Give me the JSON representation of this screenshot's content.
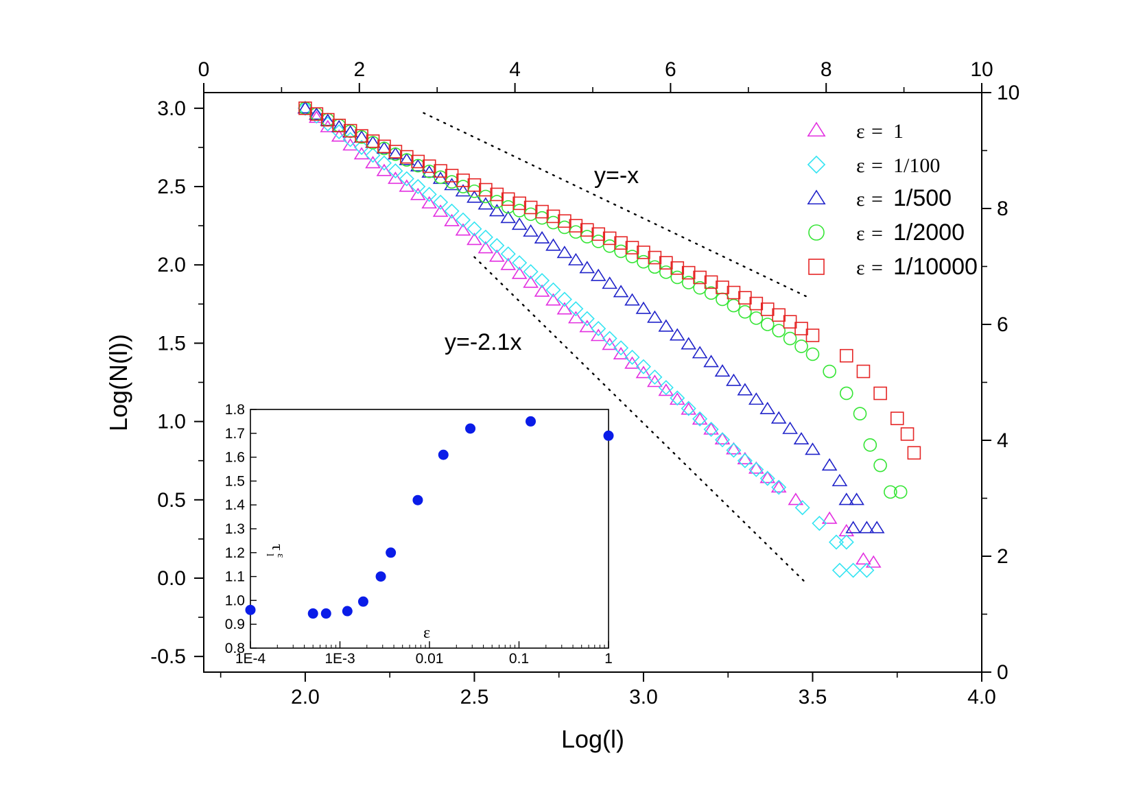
{
  "chart_data": {
    "type": "scatter",
    "main": {
      "xlabel": "Log(l)",
      "ylabel": "Log(N(l))",
      "xlim": [
        1.7,
        4.0
      ],
      "ylim": [
        -0.6,
        3.1
      ],
      "xticks": [
        "2.0",
        "2.5",
        "3.0",
        "3.5",
        "4.0"
      ],
      "yticks": [
        "-0.5",
        "0.0",
        "0.5",
        "1.0",
        "1.5",
        "2.0",
        "2.5",
        "3.0"
      ],
      "top_axis": {
        "range": [
          0,
          10
        ],
        "ticks": [
          "0",
          "2",
          "4",
          "6",
          "8",
          "10"
        ]
      },
      "right_axis": {
        "range": [
          0,
          10
        ],
        "ticks": [
          "0",
          "2",
          "4",
          "6",
          "8",
          "10"
        ]
      },
      "legend": {
        "placement": "top-right",
        "entries": [
          {
            "symbol": "=",
            "value": "1",
            "label": "ε = 1",
            "marker": "triangle",
            "color": "#e32fe0"
          },
          {
            "symbol": "=",
            "value": "1/100",
            "label": "ε = 1/100",
            "marker": "diamond",
            "color": "#34e4f2"
          },
          {
            "symbol": "=",
            "value": "1/500",
            "label": "ε = 1/500",
            "marker": "triangle",
            "color": "#1f22c9"
          },
          {
            "symbol": "=",
            "value": "1/2000",
            "label": "ε = 1/2000",
            "marker": "circle",
            "color": "#35e535"
          },
          {
            "symbol": "=",
            "value": "1/10000",
            "label": "ε = 1/10000",
            "marker": "square",
            "color": "#e52525"
          }
        ],
        "eps_symbol": "ε"
      },
      "series": [
        {
          "name": "ε = 1",
          "points": [
            [
              2.0,
              3.0
            ],
            [
              2.1,
              2.82
            ],
            [
              2.2,
              2.65
            ],
            [
              2.3,
              2.5
            ],
            [
              2.4,
              2.34
            ],
            [
              2.5,
              2.16
            ],
            [
              2.6,
              2.0
            ],
            [
              2.7,
              1.83
            ],
            [
              2.8,
              1.66
            ],
            [
              2.9,
              1.49
            ],
            [
              3.0,
              1.31
            ],
            [
              3.1,
              1.14
            ],
            [
              3.2,
              0.95
            ],
            [
              3.3,
              0.76
            ],
            [
              3.4,
              0.58
            ],
            [
              3.45,
              0.5
            ],
            [
              3.55,
              0.38
            ],
            [
              3.6,
              0.3
            ],
            [
              3.65,
              0.12
            ],
            [
              3.68,
              0.1
            ]
          ]
        },
        {
          "name": "ε = 1/100",
          "points": [
            [
              2.0,
              3.0
            ],
            [
              2.1,
              2.85
            ],
            [
              2.2,
              2.7
            ],
            [
              2.3,
              2.55
            ],
            [
              2.4,
              2.4
            ],
            [
              2.5,
              2.23
            ],
            [
              2.6,
              2.07
            ],
            [
              2.7,
              1.9
            ],
            [
              2.8,
              1.72
            ],
            [
              2.9,
              1.53
            ],
            [
              3.0,
              1.35
            ],
            [
              3.1,
              1.15
            ],
            [
              3.2,
              0.95
            ],
            [
              3.3,
              0.75
            ],
            [
              3.4,
              0.58
            ],
            [
              3.47,
              0.45
            ],
            [
              3.52,
              0.35
            ],
            [
              3.57,
              0.23
            ],
            [
              3.6,
              0.23
            ],
            [
              3.58,
              0.05
            ],
            [
              3.62,
              0.05
            ],
            [
              3.66,
              0.05
            ]
          ]
        },
        {
          "name": "ε = 1/500",
          "points": [
            [
              2.0,
              3.0
            ],
            [
              2.1,
              2.88
            ],
            [
              2.2,
              2.78
            ],
            [
              2.3,
              2.67
            ],
            [
              2.4,
              2.55
            ],
            [
              2.5,
              2.43
            ],
            [
              2.6,
              2.3
            ],
            [
              2.7,
              2.17
            ],
            [
              2.8,
              2.03
            ],
            [
              2.9,
              1.88
            ],
            [
              3.0,
              1.72
            ],
            [
              3.1,
              1.55
            ],
            [
              3.2,
              1.38
            ],
            [
              3.3,
              1.2
            ],
            [
              3.4,
              1.02
            ],
            [
              3.5,
              0.82
            ],
            [
              3.55,
              0.72
            ],
            [
              3.58,
              0.62
            ],
            [
              3.6,
              0.5
            ],
            [
              3.63,
              0.5
            ],
            [
              3.62,
              0.32
            ],
            [
              3.66,
              0.32
            ],
            [
              3.69,
              0.32
            ]
          ]
        },
        {
          "name": "ε = 1/2000",
          "points": [
            [
              2.0,
              3.0
            ],
            [
              2.1,
              2.89
            ],
            [
              2.2,
              2.78
            ],
            [
              2.3,
              2.67
            ],
            [
              2.4,
              2.56
            ],
            [
              2.5,
              2.47
            ],
            [
              2.6,
              2.37
            ],
            [
              2.7,
              2.3
            ],
            [
              2.8,
              2.21
            ],
            [
              2.9,
              2.12
            ],
            [
              3.0,
              2.02
            ],
            [
              3.1,
              1.92
            ],
            [
              3.2,
              1.82
            ],
            [
              3.3,
              1.7
            ],
            [
              3.4,
              1.58
            ],
            [
              3.5,
              1.43
            ],
            [
              3.55,
              1.32
            ],
            [
              3.6,
              1.18
            ],
            [
              3.64,
              1.05
            ],
            [
              3.67,
              0.85
            ],
            [
              3.7,
              0.72
            ],
            [
              3.73,
              0.55
            ],
            [
              3.76,
              0.55
            ]
          ]
        },
        {
          "name": "ε = 1/10000",
          "points": [
            [
              2.0,
              3.0
            ],
            [
              2.1,
              2.89
            ],
            [
              2.2,
              2.79
            ],
            [
              2.3,
              2.69
            ],
            [
              2.4,
              2.6
            ],
            [
              2.5,
              2.51
            ],
            [
              2.6,
              2.42
            ],
            [
              2.7,
              2.34
            ],
            [
              2.8,
              2.25
            ],
            [
              2.9,
              2.17
            ],
            [
              3.0,
              2.08
            ],
            [
              3.1,
              1.98
            ],
            [
              3.2,
              1.89
            ],
            [
              3.3,
              1.79
            ],
            [
              3.4,
              1.68
            ],
            [
              3.5,
              1.55
            ],
            [
              3.6,
              1.42
            ],
            [
              3.65,
              1.32
            ],
            [
              3.7,
              1.18
            ],
            [
              3.75,
              1.02
            ],
            [
              3.78,
              0.92
            ],
            [
              3.8,
              0.8
            ]
          ]
        }
      ],
      "reference_lines": [
        {
          "label": "y=-x",
          "from": [
            2.35,
            2.97
          ],
          "to": [
            3.48,
            1.8
          ]
        },
        {
          "label": "y=-2.1x",
          "from": [
            2.5,
            2.05
          ],
          "to": [
            3.48,
            -0.03
          ]
        }
      ],
      "annotations": [
        {
          "text": "y=-x",
          "at": [
            2.95,
            2.5
          ]
        },
        {
          "text": "y=-2.1x",
          "at": [
            2.6,
            1.5
          ]
        }
      ]
    },
    "inset": {
      "type": "scatter",
      "xlabel": "ε",
      "ylabel": "τₗᵋ",
      "xscale": "log",
      "xlim": [
        0.0001,
        1.0
      ],
      "ylim": [
        0.8,
        1.8
      ],
      "xticks": [
        "1E-4",
        "1E-3",
        "0.01",
        "0.1",
        "1"
      ],
      "yticks": [
        "0.8",
        "0.9",
        "1.0",
        "1.1",
        "1.2",
        "1.3",
        "1.4",
        "1.5",
        "1.6",
        "1.7",
        "1.8"
      ],
      "color": "#0a1ce8",
      "points": [
        [
          0.0001,
          0.96
        ],
        [
          0.0005,
          0.945
        ],
        [
          0.0007,
          0.945
        ],
        [
          0.00121,
          0.955
        ],
        [
          0.00182,
          0.995
        ],
        [
          0.00286,
          1.1
        ],
        [
          0.0037,
          1.2
        ],
        [
          0.0074,
          1.42
        ],
        [
          0.0143,
          1.61
        ],
        [
          0.0286,
          1.72
        ],
        [
          0.135,
          1.75
        ],
        [
          1.0,
          1.69
        ]
      ]
    }
  }
}
